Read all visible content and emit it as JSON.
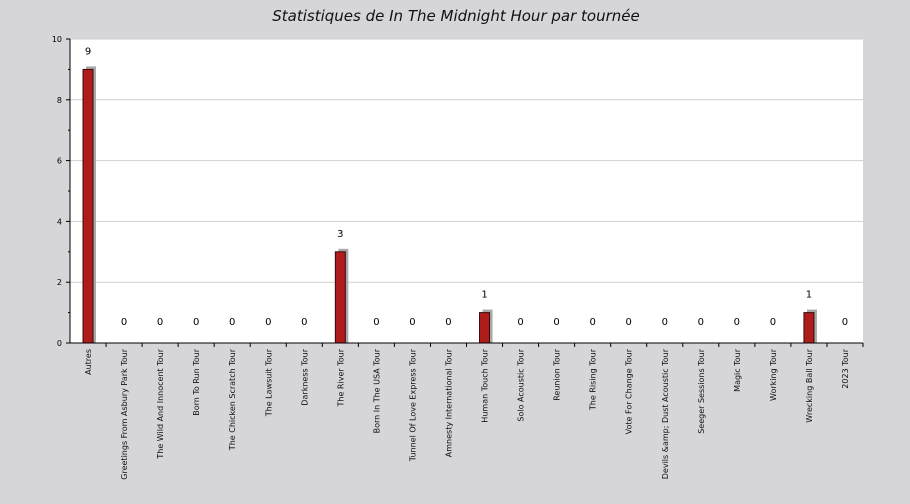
{
  "chart_data": {
    "type": "bar",
    "title": "Statistiques de In The Midnight Hour par tournée",
    "xlabel": "",
    "ylabel": "",
    "ylim": [
      0,
      10
    ],
    "yticks": [
      0,
      2,
      4,
      6,
      8,
      10
    ],
    "grid": true,
    "categories": [
      "Autres",
      "Greetings From Asbury Park Tour",
      "The Wild And Innocent Tour",
      "Born To Run Tour",
      "The Chicken Scratch Tour",
      "The Lawsuit Tour",
      "Darkness Tour",
      "The River Tour",
      "Born In The USA Tour",
      "Tunnel Of Love Express Tour",
      "Amnesty International Tour",
      "Human Touch Tour",
      "Solo Acoustic Tour",
      "Reunion Tour",
      "The Rising Tour",
      "Vote For Change Tour",
      "Devils &amp; Dust Acoustic Tour",
      "Seeger Sessions Tour",
      "Magic Tour",
      "Working Tour",
      "Wrecking Ball Tour",
      "2023 Tour"
    ],
    "values": [
      9,
      0,
      0,
      0,
      0,
      0,
      0,
      3,
      0,
      0,
      0,
      1,
      0,
      0,
      0,
      0,
      0,
      0,
      0,
      0,
      1,
      0
    ],
    "colors": {
      "bar": "#b01c1c",
      "bar_outline": "#3a0a0a",
      "shadow": "#a9a9a9",
      "plot_bg": "#ffffff",
      "page_bg": "#d6d5da",
      "grid": "#cfcfcf",
      "axis": "#000000"
    }
  }
}
